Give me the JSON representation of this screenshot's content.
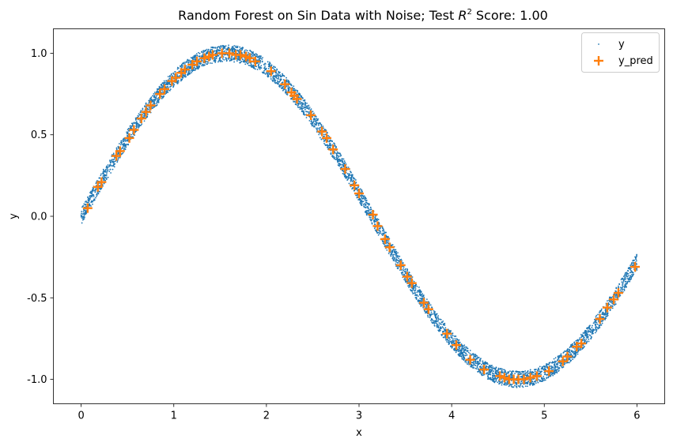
{
  "chart_data": {
    "type": "scatter",
    "title": {
      "prefix": "Random Forest on Sin Data with Noise; Test ",
      "r": "R",
      "sup": "2",
      "suffix": " Score: 1.00"
    },
    "xlabel": "x",
    "ylabel": "y",
    "xlim": [
      -0.3,
      6.3
    ],
    "ylim": [
      -1.15,
      1.15
    ],
    "xticks": [
      0,
      1,
      2,
      3,
      4,
      5,
      6
    ],
    "xtick_labels": [
      "0",
      "1",
      "2",
      "3",
      "4",
      "5",
      "6"
    ],
    "yticks": [
      -1.0,
      -0.5,
      0.0,
      0.5,
      1.0
    ],
    "ytick_labels": [
      "-1.0",
      "-0.5",
      "0.0",
      "0.5",
      "1.0"
    ],
    "grid": false,
    "legend_position": "top-right",
    "series": [
      {
        "name": "y",
        "marker": "dot",
        "color": "#1f77b4",
        "description": "noisy samples of sin(x) for x in [0, 6], noise about ±0.05",
        "x_range": [
          0,
          6
        ],
        "noise": 0.05
      },
      {
        "name": "y_pred",
        "marker": "plus",
        "color": "#ff7f0e",
        "x": [
          0.07,
          0.18,
          0.22,
          0.38,
          0.42,
          0.52,
          0.57,
          0.65,
          0.7,
          0.75,
          0.85,
          0.9,
          0.98,
          1.02,
          1.08,
          1.12,
          1.2,
          1.25,
          1.33,
          1.38,
          1.42,
          1.52,
          1.6,
          1.67,
          1.72,
          1.78,
          1.82,
          1.88,
          2.05,
          2.2,
          2.27,
          2.3,
          2.33,
          2.48,
          2.6,
          2.65,
          2.72,
          2.85,
          2.95,
          3.0,
          3.15,
          3.2,
          3.28,
          3.33,
          3.45,
          3.52,
          3.57,
          3.7,
          3.75,
          3.95,
          4.05,
          4.2,
          4.35,
          4.52,
          4.57,
          4.62,
          4.67,
          4.72,
          4.78,
          4.85,
          4.92,
          5.05,
          5.2,
          5.25,
          5.35,
          5.4,
          5.6,
          5.68,
          5.75,
          5.8,
          5.98
        ],
        "y": [
          0.05,
          0.18,
          0.21,
          0.37,
          0.4,
          0.48,
          0.53,
          0.6,
          0.64,
          0.68,
          0.75,
          0.78,
          0.83,
          0.85,
          0.88,
          0.9,
          0.93,
          0.95,
          0.97,
          0.98,
          0.99,
          1.0,
          1.0,
          0.99,
          0.99,
          0.98,
          0.97,
          0.95,
          0.89,
          0.81,
          0.76,
          0.74,
          0.72,
          0.62,
          0.52,
          0.48,
          0.41,
          0.29,
          0.19,
          0.14,
          0.01,
          -0.06,
          -0.14,
          -0.19,
          -0.3,
          -0.37,
          -0.41,
          -0.53,
          -0.57,
          -0.72,
          -0.79,
          -0.88,
          -0.94,
          -0.98,
          -0.99,
          -1.0,
          -1.0,
          -1.0,
          -1.0,
          -0.99,
          -0.98,
          -0.95,
          -0.89,
          -0.86,
          -0.8,
          -0.78,
          -0.63,
          -0.56,
          -0.51,
          -0.47,
          -0.31
        ]
      }
    ]
  }
}
